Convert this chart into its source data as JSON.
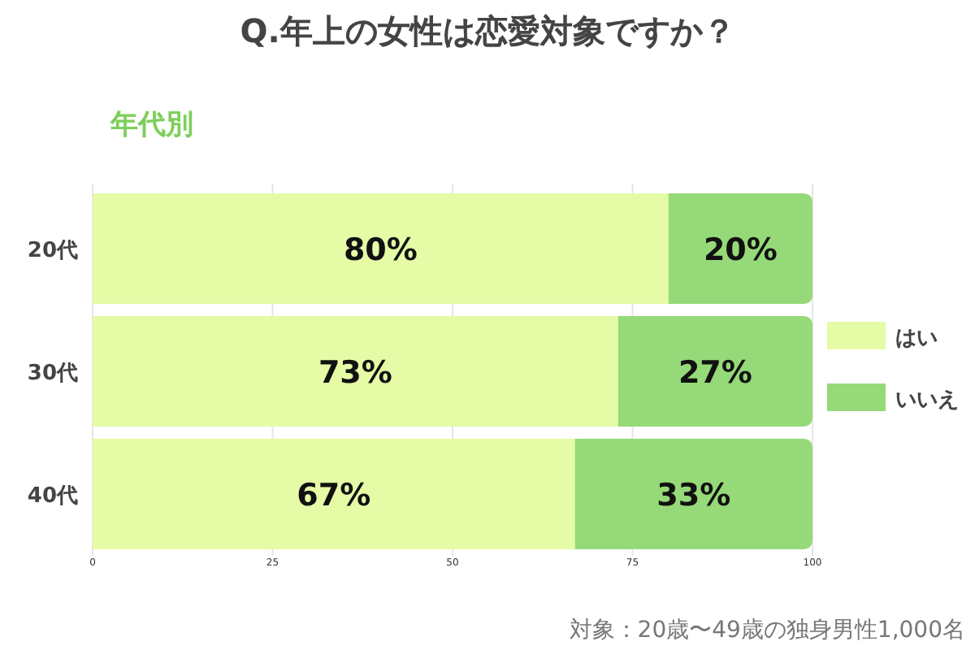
{
  "chart_data": {
    "type": "bar",
    "orientation": "horizontal",
    "stacked": true,
    "title": "Q.年上の女性は恋愛対象ですか？",
    "subtitle": "年代別",
    "categories": [
      "20代",
      "30代",
      "40代"
    ],
    "series": [
      {
        "name": "はい",
        "color": "#e5fba6",
        "values": [
          80,
          73,
          67
        ],
        "value_labels": [
          "80%",
          "73%",
          "67%"
        ]
      },
      {
        "name": "いいえ",
        "color": "#96d978",
        "values": [
          20,
          27,
          33
        ],
        "value_labels": [
          "20%",
          "27%",
          "33%"
        ]
      }
    ],
    "xlim": [
      0,
      100
    ],
    "xticks": [
      0,
      25,
      50,
      75,
      100
    ],
    "grid": "x",
    "legend": "right",
    "annotations": [
      "対象：20歳〜49歳の独身男性1,000名"
    ]
  }
}
